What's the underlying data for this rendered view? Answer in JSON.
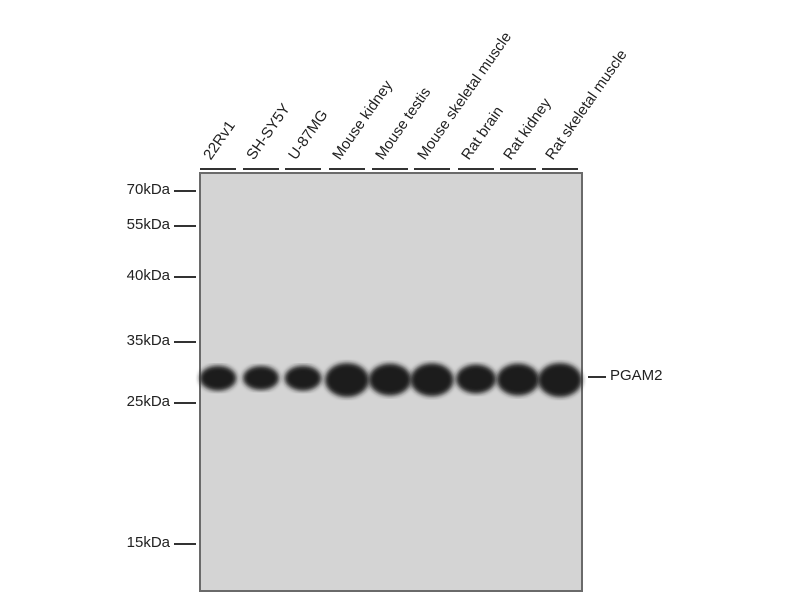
{
  "lanes": [
    "22Rv1",
    "SH-SY5Y",
    "U-87MG",
    "Mouse kidney",
    "Mouse testis",
    "Mouse skeletal muscle",
    "Rat brain",
    "Rat kidney",
    "Rat skeletal muscle"
  ],
  "markers": [
    "70kDa",
    "55kDa",
    "40kDa",
    "35kDa",
    "25kDa",
    "15kDa"
  ],
  "target": "PGAM2",
  "band_intensity": [
    0.55,
    0.5,
    0.55,
    1.0,
    0.9,
    0.95,
    0.75,
    0.9,
    1.0
  ],
  "colors": {
    "membrane": "#d4d4d4",
    "band": "#1e1e1e"
  }
}
